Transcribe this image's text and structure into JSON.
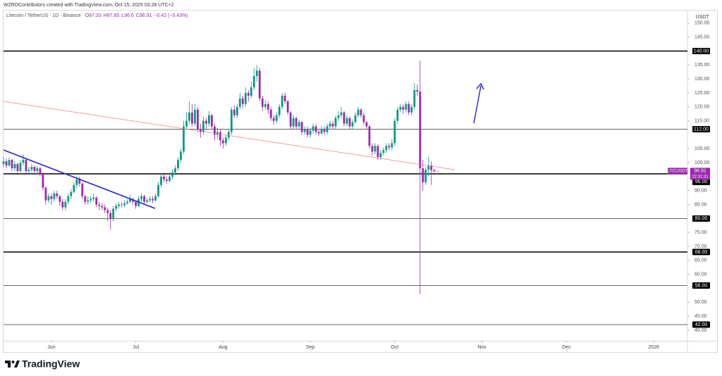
{
  "chart_data": {
    "type": "candlestick",
    "header": "WZRDContributors created with TradingView.com, Oct 15, 2025 03:28 UTC+2",
    "symbol": "Litecoin / TetherUS · 1D · Binance",
    "ohlc_labels": [
      "O",
      "H",
      "L",
      "C"
    ],
    "change": "−0.42 (−0.43%)",
    "axis_unit": "USDT",
    "up_color": "#089981",
    "down_color": "#9c27b0",
    "x": [
      "2025-05-15",
      "2025-05-16",
      "2025-05-17",
      "2025-05-18",
      "2025-05-19",
      "2025-05-20",
      "2025-05-21",
      "2025-05-22",
      "2025-05-23",
      "2025-05-24",
      "2025-05-25",
      "2025-05-26",
      "2025-05-27",
      "2025-05-28",
      "2025-05-29",
      "2025-05-30",
      "2025-05-31",
      "2025-06-01",
      "2025-06-02",
      "2025-06-03",
      "2025-06-04",
      "2025-06-05",
      "2025-06-06",
      "2025-06-07",
      "2025-06-08",
      "2025-06-09",
      "2025-06-10",
      "2025-06-11",
      "2025-06-12",
      "2025-06-13",
      "2025-06-14",
      "2025-06-15",
      "2025-06-16",
      "2025-06-17",
      "2025-06-18",
      "2025-06-19",
      "2025-06-20",
      "2025-06-21",
      "2025-06-22",
      "2025-06-23",
      "2025-06-24",
      "2025-06-25",
      "2025-06-26",
      "2025-06-27",
      "2025-06-28",
      "2025-06-29",
      "2025-06-30",
      "2025-07-01",
      "2025-07-02",
      "2025-07-03",
      "2025-07-04",
      "2025-07-05",
      "2025-07-06",
      "2025-07-07",
      "2025-07-08",
      "2025-07-09",
      "2025-07-10",
      "2025-07-11",
      "2025-07-12",
      "2025-07-13",
      "2025-07-14",
      "2025-07-15",
      "2025-07-16",
      "2025-07-17",
      "2025-07-18",
      "2025-07-19",
      "2025-07-20",
      "2025-07-21",
      "2025-07-22",
      "2025-07-23",
      "2025-07-24",
      "2025-07-25",
      "2025-07-26",
      "2025-07-27",
      "2025-07-28",
      "2025-07-29",
      "2025-07-30",
      "2025-07-31",
      "2025-08-01",
      "2025-08-02",
      "2025-08-03",
      "2025-08-04",
      "2025-08-05",
      "2025-08-06",
      "2025-08-07",
      "2025-08-08",
      "2025-08-09",
      "2025-08-10",
      "2025-08-11",
      "2025-08-12",
      "2025-08-13",
      "2025-08-14",
      "2025-08-15",
      "2025-08-16",
      "2025-08-17",
      "2025-08-18",
      "2025-08-19",
      "2025-08-20",
      "2025-08-21",
      "2025-08-22",
      "2025-08-23",
      "2025-08-24",
      "2025-08-25",
      "2025-08-26",
      "2025-08-27",
      "2025-08-28",
      "2025-08-29",
      "2025-08-30",
      "2025-08-31",
      "2025-09-01",
      "2025-09-02",
      "2025-09-03",
      "2025-09-04",
      "2025-09-05",
      "2025-09-06",
      "2025-09-07",
      "2025-09-08",
      "2025-09-09",
      "2025-09-10",
      "2025-09-11",
      "2025-09-12",
      "2025-09-13",
      "2025-09-14",
      "2025-09-15",
      "2025-09-16",
      "2025-09-17",
      "2025-09-18",
      "2025-09-19",
      "2025-09-20",
      "2025-09-21",
      "2025-09-22",
      "2025-09-23",
      "2025-09-24",
      "2025-09-25",
      "2025-09-26",
      "2025-09-27",
      "2025-09-28",
      "2025-09-29",
      "2025-09-30",
      "2025-10-01",
      "2025-10-02",
      "2025-10-03",
      "2025-10-04",
      "2025-10-05",
      "2025-10-06",
      "2025-10-07",
      "2025-10-08",
      "2025-10-09",
      "2025-10-10",
      "2025-10-11",
      "2025-10-12",
      "2025-10-13",
      "2025-10-14",
      "2025-10-15"
    ],
    "open": [
      99.5,
      100.5,
      99,
      101,
      98,
      99.5,
      97,
      100,
      101,
      97,
      97.5,
      98.5,
      97,
      98,
      96,
      91,
      86.5,
      88,
      87,
      89,
      88,
      86,
      84,
      86,
      88,
      89.5,
      92,
      94,
      92.5,
      88,
      86,
      86.5,
      87,
      87.5,
      85,
      84.5,
      84,
      83,
      82,
      80,
      83.5,
      84.5,
      85,
      84.8,
      85.5,
      86,
      87,
      86,
      84.5,
      87,
      88,
      86,
      86.5,
      87,
      86.5,
      88,
      92,
      95,
      94,
      93.5,
      95,
      96.5,
      98,
      101,
      104,
      113,
      115,
      118,
      114,
      119,
      112,
      111,
      115,
      114,
      117,
      113,
      110,
      111,
      108,
      107,
      109,
      111,
      119,
      117,
      120,
      123,
      121,
      125,
      124,
      127,
      131,
      133,
      123,
      120,
      121,
      119,
      116,
      115,
      117,
      120,
      124,
      122,
      118,
      113,
      116,
      113,
      114.5,
      111,
      112,
      110,
      111.5,
      113,
      111,
      110.5,
      112,
      111,
      113,
      114,
      113,
      116,
      117,
      118,
      114,
      116,
      113,
      114.5,
      117,
      119,
      117,
      114.5,
      113,
      106,
      104,
      106,
      102,
      103.5,
      104.5,
      106,
      105.5,
      107,
      115,
      119,
      120,
      119,
      121,
      118,
      120,
      126,
      125.5,
      98,
      93,
      97.5,
      99,
      97.33
    ],
    "high": [
      102,
      101.5,
      102,
      101.5,
      100.5,
      100,
      101,
      103,
      101.5,
      98.5,
      99.5,
      99,
      99,
      98.5,
      96.5,
      91.5,
      89,
      89,
      90,
      90,
      88.5,
      87,
      87,
      89,
      90.5,
      93,
      95,
      95,
      93,
      88.5,
      88,
      88,
      89,
      88,
      86,
      85.5,
      85,
      84,
      83,
      84.5,
      85.5,
      86,
      86,
      86.5,
      87,
      88.5,
      87.5,
      86.5,
      88,
      89,
      88.5,
      87.5,
      88,
      88,
      89,
      93,
      96,
      96,
      95,
      96.5,
      97.5,
      99,
      102,
      105,
      115,
      118,
      122,
      121,
      121,
      120,
      114,
      116.5,
      116,
      118.5,
      117.5,
      114,
      112.5,
      112,
      109,
      110,
      112,
      120,
      120.5,
      121,
      125,
      124,
      127,
      126,
      129,
      134,
      135,
      134,
      124,
      122.5,
      122,
      120,
      117,
      118,
      121,
      125,
      125,
      122.5,
      118.5,
      117,
      116.5,
      115.5,
      115,
      113,
      113,
      112.5,
      114,
      114,
      112,
      113,
      113,
      114,
      115,
      115,
      117,
      118.5,
      120,
      118.5,
      117,
      116.5,
      115.5,
      118,
      120,
      119.5,
      118,
      115,
      113.5,
      107,
      107,
      106.5,
      104.5,
      105.5,
      107,
      107,
      108.5,
      116,
      120,
      121,
      121,
      122,
      122,
      121,
      128.5,
      128,
      136.5,
      101,
      98.5,
      102,
      100.5,
      97.85
    ],
    "low": [
      98.5,
      98,
      98.5,
      97,
      97,
      96,
      96.5,
      99,
      96,
      96,
      96.5,
      96,
      96,
      95,
      90,
      85,
      85.5,
      85,
      86,
      87,
      84.5,
      83,
      83,
      85,
      87,
      89,
      91,
      91.5,
      87,
      85,
      85,
      85.5,
      86,
      84,
      83,
      83,
      82,
      79,
      76,
      79,
      82.5,
      83.5,
      84,
      84,
      85,
      85.5,
      85,
      83.5,
      84,
      86,
      85,
      85.5,
      86,
      85.5,
      86,
      87.5,
      91,
      93,
      92.5,
      93,
      94,
      95.5,
      97,
      100,
      103,
      112,
      114,
      113,
      113,
      111,
      109,
      110,
      112,
      113,
      112,
      108,
      108.5,
      106,
      105,
      106,
      108,
      110,
      116,
      116,
      119,
      119.5,
      120,
      122,
      123,
      126,
      129,
      122,
      118.5,
      119,
      117.5,
      115,
      113.5,
      114,
      116,
      119,
      121,
      117,
      112,
      112,
      112,
      112,
      110,
      110,
      109,
      109,
      110.5,
      110,
      109.5,
      110,
      110,
      110,
      112,
      112,
      112,
      115,
      116,
      113,
      113,
      112,
      112,
      114,
      116,
      116,
      113.5,
      112,
      105,
      102.5,
      103,
      101,
      101,
      102.5,
      103.5,
      104.5,
      104.5,
      106,
      114,
      118,
      117.5,
      118,
      117,
      117,
      119,
      124,
      53,
      90,
      92,
      95,
      92,
      96.6
    ],
    "close": [
      100.5,
      99,
      101,
      98,
      99.5,
      97,
      100,
      101,
      97,
      97.5,
      98.5,
      97,
      98,
      96,
      91,
      86.5,
      88,
      87,
      89,
      88,
      86,
      84,
      86,
      88,
      89.5,
      92,
      94,
      92.5,
      88,
      86,
      86.5,
      87,
      87.5,
      85,
      84.5,
      84,
      83,
      82,
      80,
      83.5,
      84.5,
      85,
      84.8,
      85.5,
      86,
      87,
      86,
      84.5,
      87,
      88,
      86,
      86.5,
      87,
      86.5,
      88,
      92,
      95,
      94,
      93.5,
      95,
      96.5,
      98,
      101,
      104,
      113,
      115,
      118,
      114,
      119,
      112,
      111,
      115,
      114,
      117,
      113,
      110,
      111,
      108,
      107,
      109,
      111,
      119,
      117,
      120,
      123,
      121,
      125,
      124,
      127,
      131,
      133,
      123,
      120,
      121,
      119,
      116,
      115,
      117,
      120,
      124,
      122,
      118,
      113,
      116,
      113,
      114.5,
      111,
      112,
      110,
      111.5,
      113,
      111,
      110.5,
      112,
      111,
      113,
      114,
      113,
      116,
      117,
      118,
      114,
      116,
      113,
      114.5,
      117,
      119,
      117,
      114.5,
      113,
      106,
      104,
      106,
      102,
      103.5,
      104.5,
      106,
      105.5,
      107,
      115,
      119,
      120,
      119,
      121,
      118,
      120,
      126,
      125.5,
      98,
      93,
      97.5,
      99,
      97.33,
      96.91
    ],
    "xlim": [
      "2025-05-15",
      "2026-01-13"
    ],
    "xticks": [
      {
        "value": "2025-06-01",
        "label": "Jun"
      },
      {
        "value": "2025-07-01",
        "label": "Jul"
      },
      {
        "value": "2025-08-01",
        "label": "Aug"
      },
      {
        "value": "2025-09-01",
        "label": "Sep"
      },
      {
        "value": "2025-10-01",
        "label": "Oct"
      },
      {
        "value": "2025-11-01",
        "label": "Nov"
      },
      {
        "value": "2025-12-01",
        "label": "Dec"
      },
      {
        "value": "2026-01-01",
        "label": "2026"
      }
    ],
    "ylim": [
      36.2,
      154.5
    ],
    "yticks": [
      {
        "value": 40,
        "label": "40.00"
      },
      {
        "value": 45,
        "label": "45.00"
      },
      {
        "value": 50,
        "label": "50.00"
      },
      {
        "value": 60,
        "label": "60.00"
      },
      {
        "value": 65,
        "label": "65.00"
      },
      {
        "value": 70,
        "label": "70.00"
      },
      {
        "value": 75,
        "label": "75.00"
      },
      {
        "value": 85,
        "label": "85.00"
      },
      {
        "value": 90,
        "label": "90.00"
      },
      {
        "value": 100,
        "label": "100.00"
      },
      {
        "value": 105,
        "label": "105.00"
      },
      {
        "value": 115,
        "label": "115.00"
      },
      {
        "value": 120,
        "label": "120.00"
      },
      {
        "value": 125,
        "label": "125.00"
      },
      {
        "value": 130,
        "label": "130.00"
      },
      {
        "value": 135,
        "label": "135.00"
      },
      {
        "value": 145,
        "label": "145.00"
      },
      {
        "value": 150,
        "label": "150.00"
      }
    ],
    "levels": [
      {
        "value": 140,
        "label": "140.00",
        "heavy": true
      },
      {
        "value": 112,
        "label": "112.00",
        "heavy": false
      },
      {
        "value": 96,
        "label": "96.00",
        "heavy": true
      },
      {
        "value": 80,
        "label": "80.00",
        "heavy": false
      },
      {
        "value": 68,
        "label": "68.00",
        "heavy": true
      },
      {
        "value": 56,
        "label": "56.00",
        "heavy": false
      },
      {
        "value": 42,
        "label": "42.00",
        "heavy": false
      }
    ],
    "last_price": {
      "symbol": "LTCUSDT",
      "countdown": "22:31:31"
    }
  },
  "footer": {
    "brand": "TradingView"
  }
}
